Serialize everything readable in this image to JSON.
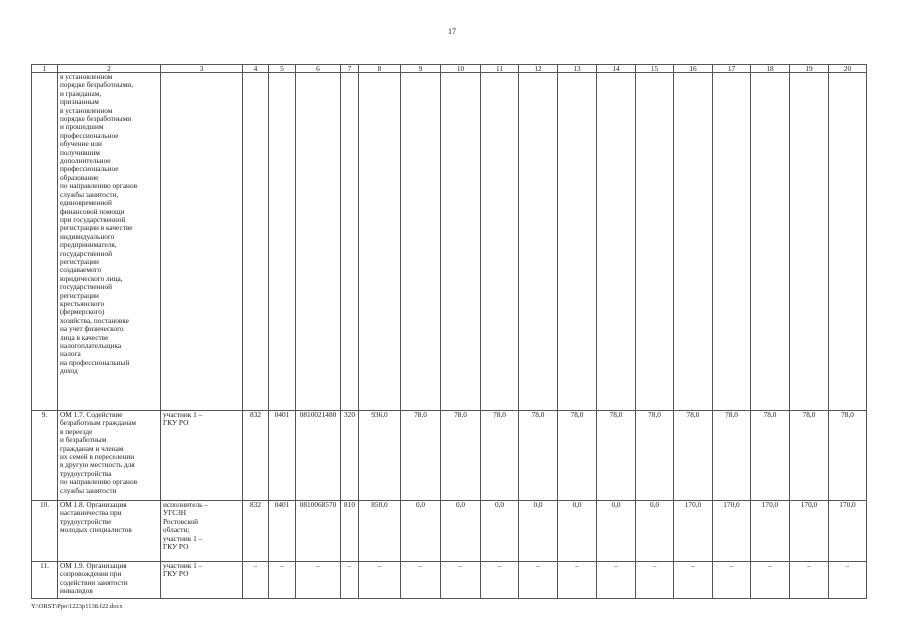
{
  "page_number": "17",
  "columns": [
    "1",
    "2",
    "3",
    "4",
    "5",
    "6",
    "7",
    "8",
    "9",
    "10",
    "11",
    "12",
    "13",
    "14",
    "15",
    "16",
    "17",
    "18",
    "19",
    "20"
  ],
  "rows": [
    {
      "num": "",
      "name": "в установленном\nпорядке безработными,\nи гражданам,\nпризнанным\nв установленном\nпорядке безработными\nи прошедшим\nпрофессиональное\nобучение или\nполучившим\nдополнительное\nпрофессиональное\nобразование\nпо направлению органов\nслужбы занятости,\nединовременной\nфинансовой помощи\nпри государственной\nрегистрации в качестве\nиндивидуального\nпредпринимателя,\nгосударственной\nрегистрации\nсоздаваемого\nюридического лица,\nгосударственной\nрегистрации\nкрестьянского\n(фермерского)\nхозяйства, постановке\nна учет физического\nлица в качестве\nналогоплательщика\nналога\nна профессиональный\nдоход",
      "executor": "",
      "values": [
        "",
        "",
        "",
        "",
        "",
        "",
        "",
        "",
        "",
        "",
        "",
        "",
        "",
        "",
        "",
        "",
        ""
      ]
    },
    {
      "num": "9.",
      "name": "ОМ 1.7. Содействие\nбезработным гражданам\nв переезде\nи безработным\nгражданам и членам\nих семей в переселении\nв другую местность для\nтрудоустройства\nпо направлению органов\nслужбы занятости",
      "executor": "участник 1 –\nГКУ РО",
      "values": [
        "832",
        "0401",
        "0810021480",
        "320",
        "936,0",
        "78,0",
        "78,0",
        "78,0",
        "78,0",
        "78,0",
        "78,0",
        "78,0",
        "78,0",
        "78,0",
        "78,0",
        "78,0",
        "78,0"
      ]
    },
    {
      "num": "10.",
      "name": "ОМ 1.8. Организация\nнаставничества при\nтрудоустройстве\nмолодых специалистов",
      "executor": "исполнитель –\nУГСЗН\nРостовской\nобласти;\nучастник 1 –\nГКУ РО",
      "values": [
        "832",
        "0401",
        "0810068570",
        "810",
        "850,0",
        "0,0",
        "0,0",
        "0,0",
        "0,0",
        "0,0",
        "0,0",
        "0,0",
        "170,0",
        "170,0",
        "170,0",
        "170,0",
        "170,0"
      ]
    },
    {
      "num": "11.",
      "name": "ОМ 1.9. Организация\nсопровождения при\nсодействии занятости\nинвалидов",
      "executor": "участник 1 –\nГКУ РО",
      "values": [
        "–",
        "–",
        "–",
        "–",
        "–",
        "–",
        "–",
        "–",
        "–",
        "–",
        "–",
        "–",
        "–",
        "–",
        "–",
        "–",
        "–"
      ]
    }
  ],
  "footer": "Y:\\ORST\\Ppo\\1223p1138.f22.docx"
}
